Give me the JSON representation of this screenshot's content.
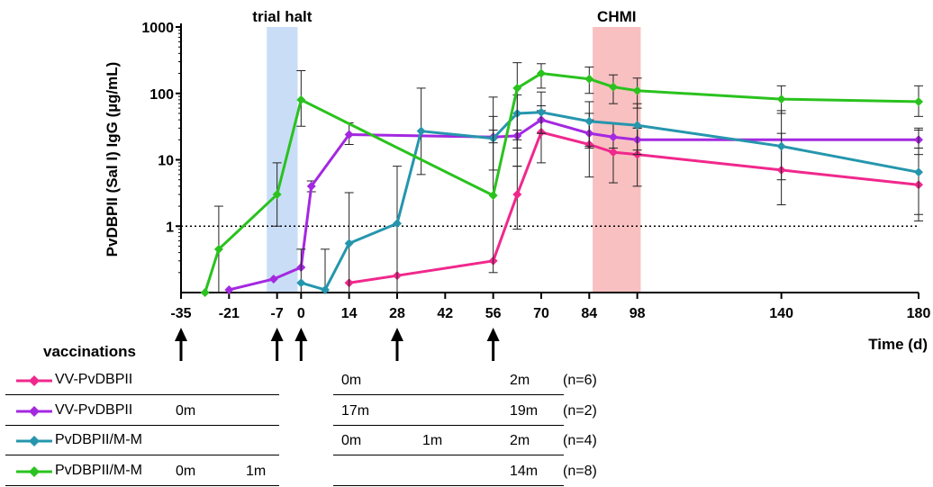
{
  "chart_data": {
    "type": "line",
    "title": "",
    "xlabel": "Time (d)",
    "ylabel": "PvDBPII (Sal I) IgG (µg/mL)",
    "xlim": [
      -35,
      180
    ],
    "ylim": [
      0.1,
      1000
    ],
    "y_scale": "log",
    "x_ticks": [
      "-35",
      "-21",
      "-7",
      "0",
      "14",
      "28",
      "42",
      "56",
      "70",
      "84",
      "98",
      "140",
      "180"
    ],
    "y_ticks": [
      "1",
      "10",
      "100",
      "1000"
    ],
    "reference_line_y": 1,
    "shaded_regions": [
      {
        "label": "trial halt",
        "x0": -10,
        "x1": -1,
        "color": "#c9ddf7"
      },
      {
        "label": "CHMI",
        "x0": 85,
        "x1": 99,
        "color": "#f8c0c0"
      }
    ],
    "vaccination_days": [
      -35,
      -7,
      0,
      28,
      56
    ],
    "series": [
      {
        "name": "VV-PvDBPII",
        "color": "#f0288c",
        "x": [
          14,
          28,
          56,
          63,
          70,
          84,
          91,
          98,
          140,
          180
        ],
        "y": [
          0.14,
          0.18,
          0.3,
          3.0,
          26,
          17,
          13,
          12,
          7,
          4.2
        ],
        "err_low": [
          null,
          null,
          null,
          0.9,
          9,
          5.5,
          4.5,
          4,
          2.1,
          1.2
        ],
        "err_high": [
          null,
          null,
          null,
          8,
          55,
          50,
          35,
          30,
          25,
          12
        ]
      },
      {
        "name": "VV-PvDBPII",
        "color": "#a428e0",
        "x": [
          -21,
          -8,
          0,
          3,
          14,
          56,
          63,
          70,
          84,
          91,
          98,
          180
        ],
        "y": [
          0.11,
          0.16,
          0.24,
          4.0,
          24,
          22,
          23,
          40,
          25,
          22,
          20,
          20
        ],
        "err_low": [
          null,
          null,
          null,
          3.3,
          17,
          18,
          20,
          25,
          16,
          15,
          14,
          15
        ],
        "err_high": [
          null,
          null,
          null,
          4.8,
          36,
          28,
          28,
          65,
          40,
          35,
          30,
          28
        ]
      },
      {
        "name": "PvDBPII/M-M",
        "color": "#2596ad",
        "x": [
          0,
          7,
          14,
          28,
          35,
          56,
          63,
          70,
          84,
          98,
          140,
          180
        ],
        "y": [
          0.14,
          0.11,
          0.55,
          1.1,
          27,
          21,
          50,
          52,
          38,
          33,
          16,
          6.5
        ],
        "err_low": [
          null,
          null,
          0.1,
          0.1,
          6,
          7,
          15,
          25,
          15,
          12,
          5,
          1.5
        ],
        "err_high": [
          0.45,
          0.45,
          3.2,
          8,
          120,
          45,
          95,
          105,
          75,
          70,
          55,
          30
        ]
      },
      {
        "name": "PvDBPII/M-M",
        "color": "#2ac21e",
        "x": [
          -28,
          -24,
          -7,
          0,
          56,
          63,
          70,
          84,
          91,
          98,
          140,
          180
        ],
        "y": [
          0.1,
          0.45,
          3.0,
          80,
          2.9,
          120,
          200,
          165,
          125,
          110,
          82,
          75
        ],
        "err_low": [
          null,
          0.1,
          1.0,
          32,
          0.2,
          8,
          120,
          100,
          70,
          60,
          50,
          45
        ],
        "err_high": [
          null,
          2.0,
          9,
          220,
          88,
          290,
          280,
          250,
          190,
          170,
          130,
          130
        ]
      }
    ]
  },
  "legend": {
    "title": "vaccinations",
    "rows": [
      {
        "name": "VV-PvDBPII",
        "color": "#f0288c",
        "pre": [
          "",
          ""
        ],
        "post": [
          "0m",
          "",
          "2m"
        ],
        "n": "(n=6)"
      },
      {
        "name": "VV-PvDBPII",
        "color": "#a428e0",
        "pre": [
          "0m",
          ""
        ],
        "post": [
          "17m",
          "",
          "19m"
        ],
        "n": "(n=2)"
      },
      {
        "name": "PvDBPII/M-M",
        "color": "#2596ad",
        "pre": [
          "",
          ""
        ],
        "post": [
          "0m",
          "1m",
          "2m"
        ],
        "n": "(n=4)"
      },
      {
        "name": "PvDBPII/M-M",
        "color": "#2ac21e",
        "pre": [
          "0m",
          "1m"
        ],
        "post": [
          "",
          "",
          "14m"
        ],
        "n": "(n=8)"
      }
    ]
  }
}
